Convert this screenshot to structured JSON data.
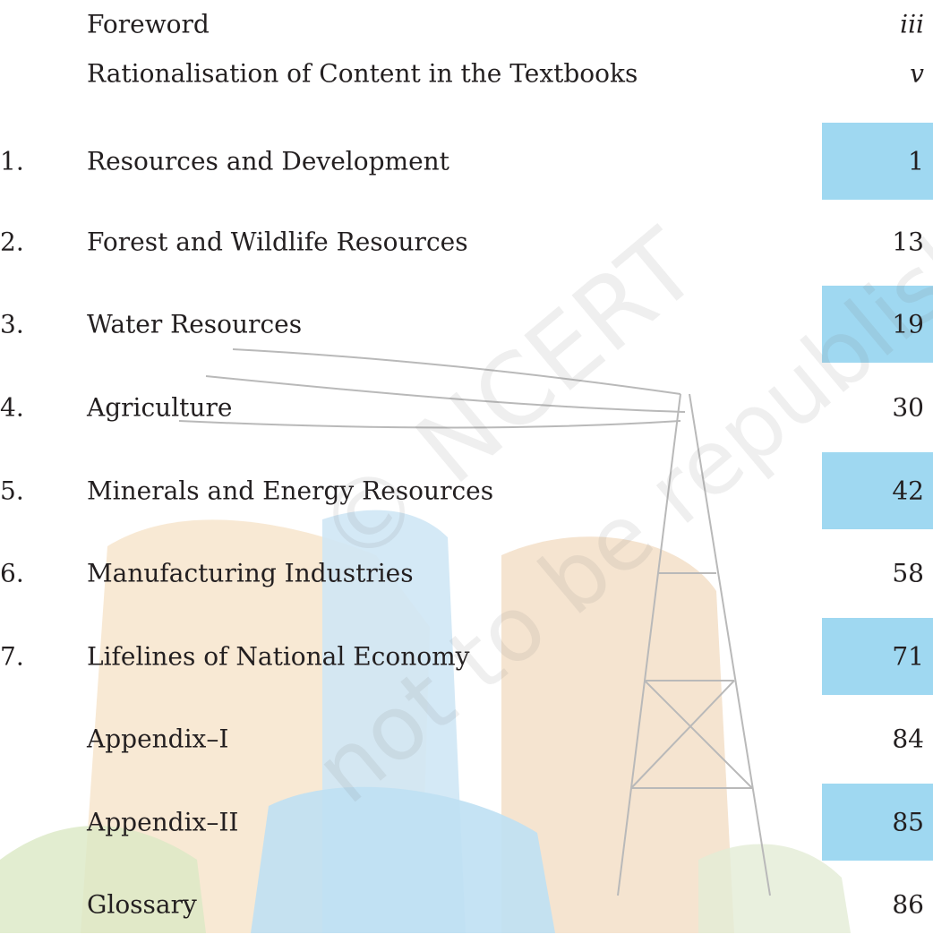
{
  "contents": [
    {
      "title": "Foreword",
      "page": "iii"
    },
    {
      "title": "Rationalisation of Content in the Textbooks",
      "page": "v"
    },
    {
      "number": "1.",
      "title": "Resources and Development",
      "page": "1"
    },
    {
      "number": "2.",
      "title": "Forest and Wildlife Resources",
      "page": "13"
    },
    {
      "number": "3.",
      "title": "Water Resources",
      "page": "19"
    },
    {
      "number": "4.",
      "title": "Agriculture",
      "page": "30"
    },
    {
      "number": "5.",
      "title": "Minerals and Energy Resources",
      "page": "42"
    },
    {
      "number": "6.",
      "title": "Manufacturing Industries",
      "page": "58"
    },
    {
      "number": "7.",
      "title": "Lifelines of National Economy",
      "page": "71"
    },
    {
      "title": "Appendix–I",
      "page": "84"
    },
    {
      "title": "Appendix–II",
      "page": "85"
    },
    {
      "title": "Glossary",
      "page": "86"
    }
  ],
  "watermark": [
    "© NCERT",
    "not to be republished"
  ]
}
